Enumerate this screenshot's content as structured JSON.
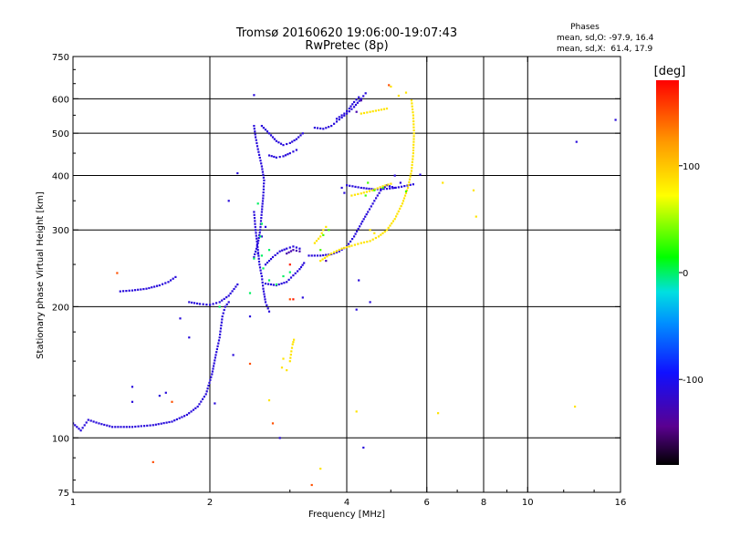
{
  "chart_data": {
    "type": "scatter",
    "title": "Tromsø 20160620 19:06:00-19:07:43",
    "subtitle": "RwPretec (8p)",
    "xlabel": "Frequency [MHz]",
    "ylabel": "Stationary phase Virtual Height [km]",
    "x_scale": "log",
    "y_scale": "log",
    "xlim": [
      1,
      16
    ],
    "ylim": [
      75,
      750
    ],
    "x_ticks": [
      1,
      2,
      4,
      6,
      8,
      10,
      16
    ],
    "x_tick_labels": [
      "1",
      "2",
      "4",
      "6",
      "8",
      "10",
      "16"
    ],
    "x_grid": [
      2,
      4,
      6,
      8,
      10
    ],
    "y_ticks": [
      75,
      100,
      200,
      300,
      400,
      500,
      600,
      750
    ],
    "y_tick_labels": [
      "75",
      "100",
      "200",
      "300",
      "400",
      "500",
      "600",
      "750"
    ],
    "y_grid": [
      100,
      200,
      300,
      400,
      500,
      600
    ],
    "grid": true,
    "phase_stats": {
      "heading": "Phases",
      "line_o": "mean, sd,O: -97.9, 16.4",
      "line_x": "mean, sd,X:  61.4, 17.9"
    },
    "colorbar": {
      "label": "[deg]",
      "min": -180,
      "max": 180,
      "ticks": [
        100,
        0,
        -100
      ],
      "tick_labels": [
        "100",
        "0",
        "-100"
      ]
    },
    "series": [
      {
        "color_phase": -110,
        "polylines": [
          [
            [
              1.0,
              108
            ],
            [
              1.04,
              104
            ],
            [
              1.08,
              110
            ],
            [
              1.14,
              108
            ],
            [
              1.22,
              106
            ],
            [
              1.35,
              106
            ],
            [
              1.5,
              107
            ],
            [
              1.65,
              109
            ],
            [
              1.78,
              113
            ],
            [
              1.88,
              118
            ],
            [
              1.96,
              126
            ],
            [
              2.02,
              140
            ],
            [
              2.06,
              155
            ],
            [
              2.1,
              170
            ],
            [
              2.13,
              190
            ],
            [
              2.16,
              200
            ],
            [
              2.2,
              205
            ]
          ],
          [
            [
              1.27,
              217
            ],
            [
              1.35,
              218
            ],
            [
              1.45,
              220
            ],
            [
              1.55,
              224
            ],
            [
              1.62,
              228
            ],
            [
              1.68,
              234
            ]
          ],
          [
            [
              1.8,
              205
            ],
            [
              1.9,
              203
            ],
            [
              2.0,
              202
            ],
            [
              2.1,
              205
            ],
            [
              2.2,
              212
            ],
            [
              2.3,
              225
            ]
          ],
          [
            [
              2.5,
              330
            ],
            [
              2.52,
              300
            ],
            [
              2.55,
              270
            ],
            [
              2.57,
              250
            ],
            [
              2.6,
              235
            ],
            [
              2.62,
              220
            ],
            [
              2.65,
              205
            ],
            [
              2.7,
              195
            ]
          ],
          [
            [
              2.5,
              260
            ],
            [
              2.55,
              280
            ],
            [
              2.58,
              300
            ],
            [
              2.6,
              330
            ],
            [
              2.62,
              360
            ],
            [
              2.63,
              390
            ],
            [
              2.6,
              420
            ],
            [
              2.55,
              460
            ],
            [
              2.52,
              490
            ],
            [
              2.5,
              520
            ]
          ],
          [
            [
              2.6,
              520
            ],
            [
              2.7,
              500
            ],
            [
              2.8,
              480
            ],
            [
              2.9,
              470
            ],
            [
              3.0,
              475
            ],
            [
              3.1,
              485
            ],
            [
              3.2,
              500
            ]
          ],
          [
            [
              2.7,
              445
            ],
            [
              2.8,
              440
            ],
            [
              2.9,
              443
            ],
            [
              3.0,
              450
            ],
            [
              3.1,
              458
            ]
          ],
          [
            [
              2.65,
              250
            ],
            [
              2.75,
              260
            ],
            [
              2.85,
              268
            ],
            [
              2.95,
              272
            ],
            [
              3.05,
              275
            ],
            [
              3.15,
              272
            ]
          ],
          [
            [
              2.65,
              226
            ],
            [
              2.8,
              224
            ],
            [
              2.95,
              228
            ],
            [
              3.05,
              236
            ],
            [
              3.15,
              244
            ],
            [
              3.22,
              252
            ]
          ],
          [
            [
              3.4,
              515
            ],
            [
              3.55,
              512
            ],
            [
              3.7,
              520
            ],
            [
              3.85,
              538
            ],
            [
              4.0,
              555
            ],
            [
              4.15,
              575
            ],
            [
              4.3,
              600
            ],
            [
              4.4,
              618
            ]
          ],
          [
            [
              3.3,
              262
            ],
            [
              3.5,
              262
            ],
            [
              3.7,
              264
            ],
            [
              3.85,
              268
            ],
            [
              4.0,
              275
            ],
            [
              4.15,
              290
            ],
            [
              4.3,
              310
            ],
            [
              4.45,
              330
            ],
            [
              4.6,
              350
            ],
            [
              4.75,
              370
            ],
            [
              4.9,
              380
            ],
            [
              5.1,
              375
            ]
          ],
          [
            [
              3.8,
              540
            ],
            [
              3.95,
              555
            ],
            [
              4.05,
              570
            ],
            [
              4.15,
              590
            ],
            [
              4.25,
              605
            ]
          ],
          [
            [
              4.0,
              380
            ],
            [
              4.3,
              375
            ],
            [
              4.6,
              372
            ],
            [
              4.9,
              373
            ],
            [
              5.2,
              376
            ],
            [
              5.6,
              382
            ]
          ]
        ],
        "points": [
          [
            2.5,
            612
          ],
          [
            2.3,
            405
          ],
          [
            2.2,
            350
          ],
          [
            1.72,
            188
          ],
          [
            1.8,
            170
          ],
          [
            1.35,
            131
          ],
          [
            1.35,
            121
          ],
          [
            1.55,
            125
          ],
          [
            1.6,
            127
          ],
          [
            2.05,
            120
          ],
          [
            2.25,
            155
          ],
          [
            2.45,
            190
          ],
          [
            2.85,
            100
          ],
          [
            3.2,
            210
          ],
          [
            4.2,
            197
          ],
          [
            4.25,
            230
          ],
          [
            3.9,
            375
          ],
          [
            3.95,
            365
          ],
          [
            4.5,
            205
          ],
          [
            4.35,
            95
          ],
          [
            5.1,
            400
          ],
          [
            5.25,
            385
          ],
          [
            5.8,
            402
          ],
          [
            12.8,
            478
          ],
          [
            15.6,
            537
          ],
          [
            2.55,
            265
          ],
          [
            2.6,
            290
          ],
          [
            2.65,
            305
          ]
        ]
      },
      {
        "color_phase": -130,
        "polylines": [
          [
            [
              2.95,
              265
            ],
            [
              3.05,
              270
            ],
            [
              3.15,
              268
            ]
          ]
        ],
        "points": [
          [
            3.6,
            255
          ],
          [
            4.2,
            560
          ],
          [
            4.3,
            595
          ]
        ]
      },
      {
        "color_phase": 0,
        "polylines": [],
        "points": [
          [
            2.55,
            345
          ],
          [
            2.58,
            290
          ],
          [
            2.6,
            262
          ],
          [
            2.62,
            245
          ],
          [
            2.7,
            230
          ],
          [
            2.8,
            225
          ],
          [
            2.9,
            235
          ],
          [
            3.0,
            240
          ],
          [
            2.5,
            258
          ],
          [
            2.6,
            310
          ],
          [
            2.7,
            270
          ],
          [
            2.45,
            215
          ],
          [
            2.1,
            200
          ]
        ]
      },
      {
        "color_phase": 85,
        "polylines": [
          [
            [
              3.5,
              255
            ],
            [
              3.7,
              265
            ],
            [
              3.9,
              272
            ],
            [
              4.1,
              276
            ],
            [
              4.3,
              280
            ],
            [
              4.5,
              283
            ],
            [
              4.7,
              290
            ],
            [
              4.9,
              300
            ],
            [
              5.1,
              318
            ],
            [
              5.3,
              345
            ],
            [
              5.45,
              375
            ],
            [
              5.55,
              410
            ],
            [
              5.6,
              450
            ],
            [
              5.62,
              500
            ],
            [
              5.6,
              550
            ],
            [
              5.55,
              595
            ]
          ],
          [
            [
              4.3,
              555
            ],
            [
              4.5,
              560
            ],
            [
              4.7,
              565
            ],
            [
              4.9,
              570
            ]
          ],
          [
            [
              4.1,
              360
            ],
            [
              4.3,
              364
            ],
            [
              4.55,
              370
            ],
            [
              4.8,
              378
            ],
            [
              5.0,
              383
            ]
          ],
          [
            [
              3.0,
              150
            ],
            [
              3.02,
              158
            ],
            [
              3.04,
              164
            ],
            [
              3.06,
              168
            ]
          ],
          [
            [
              3.4,
              280
            ],
            [
              3.5,
              290
            ],
            [
              3.55,
              300
            ],
            [
              3.6,
              305
            ]
          ]
        ],
        "points": [
          [
            2.88,
            145
          ],
          [
            2.9,
            152
          ],
          [
            2.95,
            143
          ],
          [
            4.2,
            115
          ],
          [
            4.5,
            300
          ],
          [
            4.6,
            295
          ],
          [
            5.0,
            640
          ],
          [
            5.2,
            610
          ],
          [
            5.4,
            620
          ],
          [
            6.5,
            385
          ],
          [
            7.6,
            370
          ],
          [
            7.7,
            322
          ],
          [
            12.7,
            118
          ],
          [
            2.7,
            122
          ],
          [
            6.35,
            114
          ],
          [
            3.5,
            85
          ]
        ]
      },
      {
        "color_phase": 30,
        "polylines": [],
        "points": [
          [
            4.4,
            360
          ],
          [
            4.6,
            370
          ],
          [
            4.8,
            375
          ],
          [
            4.45,
            385
          ],
          [
            3.55,
            292
          ],
          [
            3.65,
            300
          ],
          [
            5.4,
            368
          ],
          [
            3.5,
            270
          ]
        ]
      },
      {
        "color_phase": 150,
        "polylines": [],
        "points": [
          [
            1.5,
            88
          ],
          [
            1.65,
            121
          ],
          [
            2.45,
            148
          ],
          [
            2.75,
            108
          ],
          [
            3.0,
            208
          ],
          [
            3.35,
            78
          ],
          [
            4.95,
            645
          ],
          [
            1.25,
            239
          ]
        ]
      },
      {
        "color_phase": 170,
        "polylines": [],
        "points": [
          [
            3.05,
            208
          ],
          [
            3.0,
            250
          ]
        ]
      }
    ]
  }
}
